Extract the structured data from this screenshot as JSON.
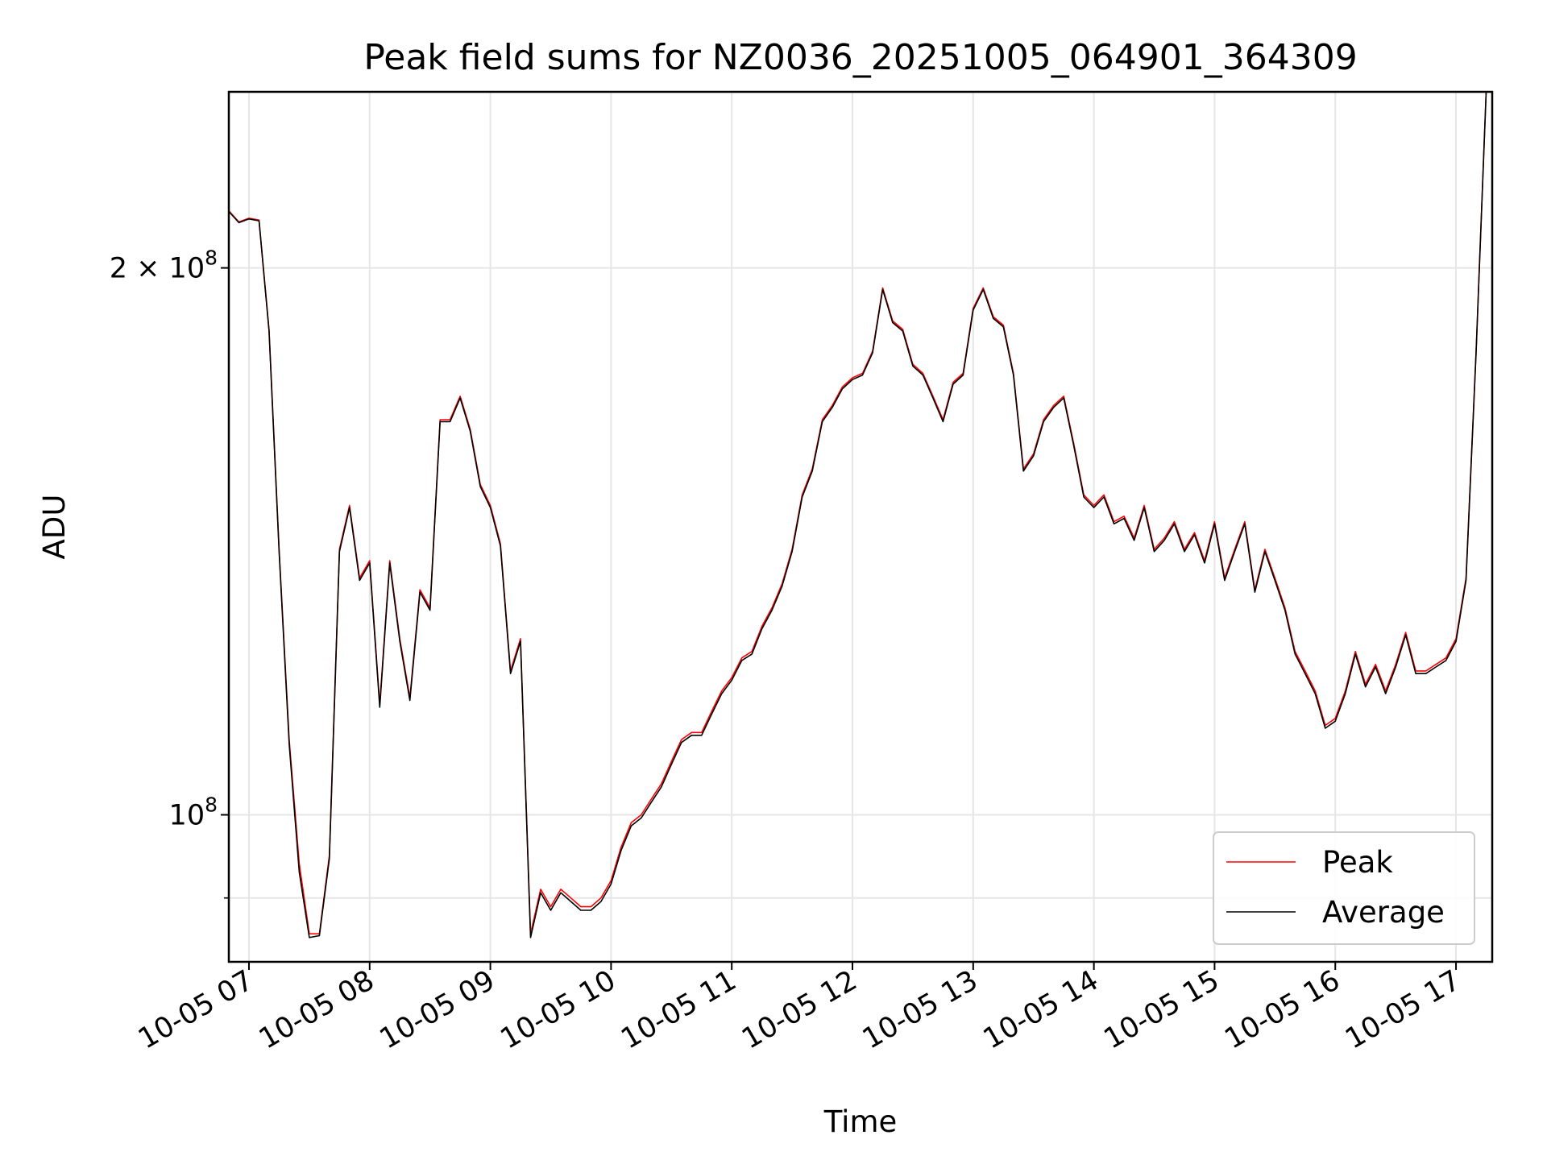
{
  "chart_data": {
    "type": "line",
    "title": "Peak field sums for NZ0036_20251005_064901_364309",
    "xlabel": "Time",
    "ylabel": "ADU",
    "yscale": "log",
    "grid": true,
    "legend_position": "lower-right",
    "x_unit": "hours (2025-10-05, local time)",
    "xlim": [
      "06:50",
      "17:18"
    ],
    "ylim": [
      83000000,
      250000000
    ],
    "x_ticks": [
      "10-05 07",
      "10-05 08",
      "10-05 09",
      "10-05 10",
      "10-05 11",
      "10-05 12",
      "10-05 13",
      "10-05 14",
      "10-05 15",
      "10-05 16",
      "10-05 17"
    ],
    "y_ticks": [
      {
        "value": 100000000,
        "label": "10",
        "exponent": "8"
      },
      {
        "value": 200000000,
        "label": "2 × 10",
        "exponent": "8"
      }
    ],
    "x": [
      "06:50",
      "06:55",
      "07:00",
      "07:05",
      "07:10",
      "07:15",
      "07:20",
      "07:25",
      "07:30",
      "07:35",
      "07:40",
      "07:45",
      "07:50",
      "07:55",
      "08:00",
      "08:05",
      "08:10",
      "08:15",
      "08:20",
      "08:25",
      "08:30",
      "08:35",
      "08:40",
      "08:45",
      "08:50",
      "08:55",
      "09:00",
      "09:05",
      "09:10",
      "09:15",
      "09:20",
      "09:25",
      "09:30",
      "09:35",
      "09:40",
      "09:45",
      "09:50",
      "09:55",
      "10:00",
      "10:05",
      "10:10",
      "10:15",
      "10:20",
      "10:25",
      "10:30",
      "10:35",
      "10:40",
      "10:45",
      "10:50",
      "10:55",
      "11:00",
      "11:05",
      "11:10",
      "11:15",
      "11:20",
      "11:25",
      "11:30",
      "11:35",
      "11:40",
      "11:45",
      "11:50",
      "11:55",
      "12:00",
      "12:05",
      "12:10",
      "12:15",
      "12:20",
      "12:25",
      "12:30",
      "12:35",
      "12:40",
      "12:45",
      "12:50",
      "12:55",
      "13:00",
      "13:05",
      "13:10",
      "13:15",
      "13:20",
      "13:25",
      "13:30",
      "13:35",
      "13:40",
      "13:45",
      "13:50",
      "13:55",
      "14:00",
      "14:05",
      "14:10",
      "14:15",
      "14:20",
      "14:25",
      "14:30",
      "14:35",
      "14:40",
      "14:45",
      "14:50",
      "14:55",
      "15:00",
      "15:05",
      "15:10",
      "15:15",
      "15:20",
      "15:25",
      "15:30",
      "15:35",
      "15:40",
      "15:45",
      "15:50",
      "15:55",
      "16:00",
      "16:05",
      "16:10",
      "16:15",
      "16:20",
      "16:25",
      "16:30",
      "16:35",
      "16:40",
      "16:45",
      "16:50",
      "16:55",
      "17:00",
      "17:05",
      "17:10",
      "17:15"
    ],
    "series": [
      {
        "name": "Peak",
        "color": "#ff0000",
        "values": [
          215000000,
          212000000,
          213000000,
          212500000,
          185000000,
          140000000,
          110000000,
          94000000,
          86000000,
          86000000,
          95000000,
          140000000,
          148000000,
          135000000,
          138000000,
          115000000,
          138000000,
          125000000,
          116000000,
          133000000,
          130000000,
          165000000,
          165000000,
          170000000,
          163000000,
          152000000,
          148000000,
          141000000,
          120000000,
          125000000,
          86000000,
          91000000,
          89000000,
          91000000,
          90000000,
          89000000,
          89000000,
          90000000,
          92000000,
          96000000,
          99000000,
          100000000,
          102000000,
          104000000,
          107000000,
          110000000,
          111000000,
          111000000,
          114000000,
          117000000,
          119000000,
          122000000,
          123000000,
          127000000,
          130000000,
          134000000,
          140000000,
          150000000,
          155000000,
          165000000,
          168000000,
          172000000,
          174000000,
          175000000,
          180000000,
          195000000,
          187000000,
          185000000,
          177000000,
          175000000,
          170000000,
          165000000,
          173000000,
          175000000,
          190000000,
          195000000,
          188000000,
          186000000,
          175000000,
          155000000,
          158000000,
          165000000,
          168000000,
          170000000,
          160000000,
          150000000,
          148000000,
          150000000,
          145000000,
          146000000,
          142000000,
          148000000,
          140000000,
          142000000,
          145000000,
          140000000,
          143000000,
          138000000,
          145000000,
          135000000,
          140000000,
          145000000,
          133000000,
          140000000,
          135000000,
          130000000,
          123000000,
          120000000,
          117000000,
          112000000,
          113000000,
          117000000,
          123000000,
          118000000,
          121000000,
          117000000,
          121000000,
          126000000,
          120000000,
          120000000,
          121000000,
          122000000,
          125000000,
          135000000,
          180000000,
          250000000
        ]
      },
      {
        "name": "Average",
        "color": "#000000",
        "values": [
          214800000,
          211800000,
          212800000,
          212300000,
          184600000,
          139600000,
          109400000,
          93000000,
          85600000,
          85800000,
          94600000,
          139600000,
          147600000,
          134600000,
          137600000,
          114600000,
          137600000,
          124600000,
          115600000,
          132600000,
          129600000,
          164600000,
          164600000,
          169600000,
          162600000,
          151600000,
          147600000,
          140600000,
          119600000,
          124600000,
          85600000,
          90600000,
          88600000,
          90600000,
          89600000,
          88600000,
          88600000,
          89600000,
          91600000,
          95600000,
          98600000,
          99600000,
          101600000,
          103600000,
          106600000,
          109600000,
          110600000,
          110600000,
          113600000,
          116600000,
          118600000,
          121600000,
          122600000,
          126600000,
          129600000,
          133600000,
          139600000,
          149600000,
          154600000,
          164600000,
          167600000,
          171600000,
          173600000,
          174600000,
          179600000,
          194600000,
          186600000,
          184600000,
          176600000,
          174600000,
          169600000,
          164600000,
          172600000,
          174600000,
          189600000,
          194600000,
          187600000,
          185600000,
          174600000,
          154600000,
          157600000,
          164600000,
          167600000,
          169600000,
          159600000,
          149600000,
          147600000,
          149600000,
          144600000,
          145600000,
          141600000,
          147600000,
          139600000,
          141600000,
          144600000,
          139600000,
          142600000,
          137600000,
          144600000,
          134600000,
          139600000,
          144600000,
          132600000,
          139600000,
          134600000,
          129600000,
          122600000,
          119600000,
          116600000,
          111600000,
          112600000,
          116600000,
          122600000,
          117600000,
          120600000,
          116600000,
          120600000,
          125600000,
          119600000,
          119600000,
          120600000,
          121600000,
          124600000,
          134600000,
          179600000,
          250000000
        ]
      }
    ]
  }
}
